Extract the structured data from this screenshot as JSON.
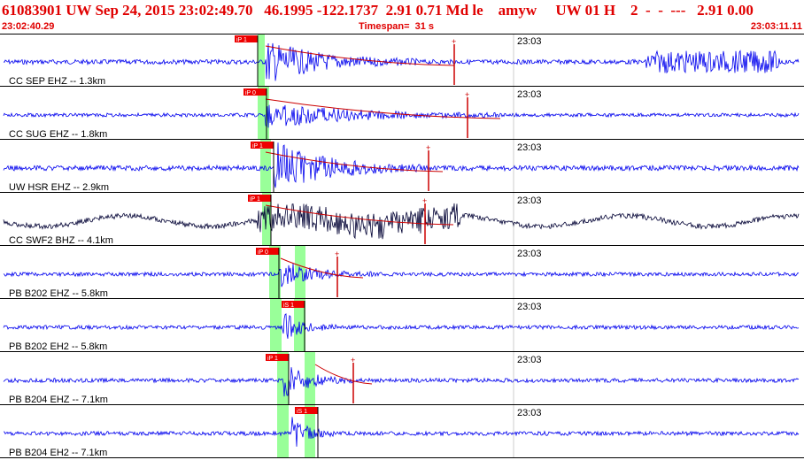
{
  "header": {
    "event_line": "61083901 UW Sep 24, 2015 23:02:49.70   46.1995 -122.1737  2.91 0.71 Md le    amyw     UW 01 H    2  -  -  ---   2.91 0.00",
    "start_time": "23:02:40.29",
    "timespan_label": "Timespan=",
    "timespan_value": "31 s",
    "end_time": "23:03:11.11"
  },
  "colors": {
    "header": "#e00000",
    "trace_primary": "#0000ee",
    "trace_dark": "#000033",
    "pick_box": "#ee0000",
    "coda_line": "#cc0000",
    "window_green": "#99ff99",
    "divider": "#000000",
    "label": "#000000"
  },
  "minute_marker": "23:03",
  "channels": [
    {
      "label": "CC SEP EHZ -- 1.3km",
      "pick1": "iP 1",
      "pick2": "",
      "trace_color": "blue"
    },
    {
      "label": "CC SUG EHZ -- 1.8km",
      "pick1": "iP 0",
      "pick2": "",
      "trace_color": "blue"
    },
    {
      "label": "UW HSR EHZ -- 2.9km",
      "pick1": "iP 1",
      "pick2": "",
      "trace_color": "blue"
    },
    {
      "label": "CC SWF2 BHZ -- 4.1km",
      "pick1": "iP 1",
      "pick2": "",
      "trace_color": "dark"
    },
    {
      "label": "PB B202 EHZ -- 5.8km",
      "pick1": "iP 0",
      "pick2": "",
      "trace_color": "blue"
    },
    {
      "label": "PB B202 EH2 -- 5.8km",
      "pick1": "",
      "pick2": "iS 1",
      "trace_color": "blue"
    },
    {
      "label": "PB B204 EHZ -- 7.1km",
      "pick1": "iP 1",
      "pick2": "",
      "trace_color": "blue"
    },
    {
      "label": "PB B204 EH2 -- 7.1km",
      "pick1": "",
      "pick2": "iS 1",
      "trace_color": "blue"
    }
  ]
}
